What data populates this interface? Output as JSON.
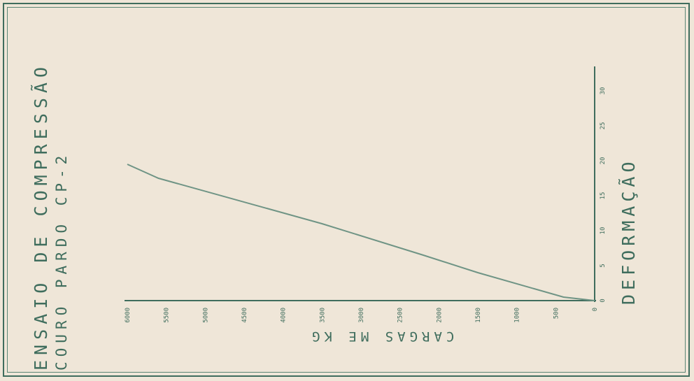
{
  "title": "ENSAIO DE COMPRESSÃO",
  "subtitle": "COURO PARDO CP-2",
  "colors": {
    "ink": "#3f6d5d",
    "paper": "#efe6d8",
    "line": "#6f9485"
  },
  "chart_data": {
    "type": "line",
    "title": "ENSAIO DE COMPRESSÃO",
    "subtitle": "COURO PARDO CP-2",
    "xlabel": "CARGAS ME KG",
    "ylabel": "DEFORMAÇÃO",
    "xlim": [
      0,
      6000
    ],
    "ylim": [
      0,
      30
    ],
    "x_ticks": [
      0,
      500,
      1000,
      1500,
      2000,
      2500,
      3000,
      3500,
      4000,
      4500,
      5000,
      5500,
      6000
    ],
    "x_tick_labels": [
      "0",
      "500",
      "1000",
      "1500",
      "2000",
      "2500",
      "3000",
      "3500",
      "4000",
      "4500",
      "5000",
      "5500",
      "6000"
    ],
    "y_ticks": [
      0,
      5,
      10,
      15,
      20,
      25,
      30
    ],
    "y_tick_labels": [
      "0",
      "5",
      "10",
      "15",
      "20",
      "25",
      "30"
    ],
    "grid": false,
    "series": [
      {
        "x": [
          0,
          400,
          1500,
          2200,
          3500,
          5600,
          6000
        ],
        "y": [
          0,
          0.5,
          4,
          6.5,
          11,
          17.5,
          19.5
        ]
      }
    ]
  }
}
